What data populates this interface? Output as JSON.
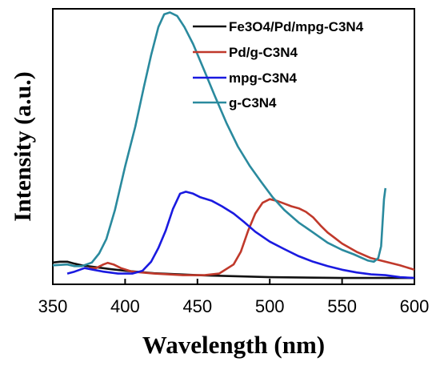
{
  "chart_data": {
    "type": "line",
    "title": "",
    "xlabel": "Wavelength (nm)",
    "ylabel": "Intensity (a.u.)",
    "xlim": [
      350,
      600
    ],
    "ylim": [
      0,
      100
    ],
    "x_ticks": [
      "350",
      "400",
      "450",
      "500",
      "550",
      "600"
    ],
    "y_ticks_shown": false,
    "grid": false,
    "legend_position": "top-right",
    "series": [
      {
        "name": "Fe3O4/Pd/mpg-C3N4",
        "color": "#111111",
        "points": [
          [
            350,
            7.9
          ],
          [
            355,
            8.2
          ],
          [
            360,
            8.2
          ],
          [
            365,
            7.5
          ],
          [
            370,
            6.9
          ],
          [
            380,
            6.2
          ],
          [
            390,
            5.5
          ],
          [
            400,
            4.9
          ],
          [
            420,
            4.0
          ],
          [
            450,
            3.3
          ],
          [
            500,
            2.6
          ],
          [
            550,
            2.3
          ],
          [
            600,
            2.3
          ]
        ]
      },
      {
        "name": "Pd/g-C3N4",
        "color": "#c0392b",
        "points": [
          [
            375,
            5.9
          ],
          [
            380,
            5.9
          ],
          [
            385,
            7.2
          ],
          [
            388,
            7.8
          ],
          [
            392,
            7.2
          ],
          [
            397,
            5.9
          ],
          [
            405,
            4.6
          ],
          [
            420,
            3.9
          ],
          [
            440,
            3.3
          ],
          [
            455,
            3.3
          ],
          [
            465,
            3.9
          ],
          [
            475,
            7.2
          ],
          [
            480,
            11.8
          ],
          [
            485,
            19.4
          ],
          [
            490,
            25.7
          ],
          [
            495,
            29.6
          ],
          [
            500,
            30.9
          ],
          [
            505,
            30.3
          ],
          [
            510,
            29.3
          ],
          [
            515,
            28.3
          ],
          [
            520,
            27.6
          ],
          [
            525,
            26.3
          ],
          [
            530,
            24.3
          ],
          [
            535,
            21.4
          ],
          [
            540,
            18.8
          ],
          [
            545,
            16.8
          ],
          [
            550,
            14.8
          ],
          [
            560,
            11.8
          ],
          [
            570,
            9.5
          ],
          [
            580,
            8.2
          ],
          [
            590,
            6.9
          ],
          [
            600,
            5.3
          ]
        ]
      },
      {
        "name": "mpg-C3N4",
        "color": "#1a1ae0",
        "points": [
          [
            360,
            3.9
          ],
          [
            365,
            4.6
          ],
          [
            372,
            5.9
          ],
          [
            378,
            5.3
          ],
          [
            385,
            4.6
          ],
          [
            395,
            3.9
          ],
          [
            405,
            3.9
          ],
          [
            412,
            4.9
          ],
          [
            418,
            8.2
          ],
          [
            423,
            13.2
          ],
          [
            428,
            19.4
          ],
          [
            433,
            27.3
          ],
          [
            438,
            32.9
          ],
          [
            442,
            33.6
          ],
          [
            447,
            32.9
          ],
          [
            452,
            31.6
          ],
          [
            460,
            30.3
          ],
          [
            467,
            28.3
          ],
          [
            475,
            25.7
          ],
          [
            482,
            22.7
          ],
          [
            490,
            19.1
          ],
          [
            500,
            15.5
          ],
          [
            510,
            12.8
          ],
          [
            520,
            10.2
          ],
          [
            530,
            8.2
          ],
          [
            540,
            6.6
          ],
          [
            550,
            5.3
          ],
          [
            560,
            4.3
          ],
          [
            570,
            3.6
          ],
          [
            580,
            3.3
          ],
          [
            590,
            2.6
          ],
          [
            600,
            2.3
          ]
        ]
      },
      {
        "name": "g-C3N4",
        "color": "#2a8a9e",
        "points": [
          [
            350,
            6.9
          ],
          [
            360,
            7.2
          ],
          [
            365,
            6.6
          ],
          [
            370,
            6.6
          ],
          [
            377,
            7.9
          ],
          [
            382,
            11.2
          ],
          [
            387,
            16.4
          ],
          [
            393,
            27.0
          ],
          [
            400,
            42.8
          ],
          [
            407,
            57.2
          ],
          [
            413,
            71.7
          ],
          [
            418,
            83.2
          ],
          [
            423,
            93.4
          ],
          [
            427,
            98.0
          ],
          [
            431,
            98.7
          ],
          [
            436,
            97.4
          ],
          [
            441,
            93.4
          ],
          [
            447,
            87.2
          ],
          [
            455,
            77.3
          ],
          [
            462,
            68.4
          ],
          [
            470,
            58.6
          ],
          [
            478,
            50.0
          ],
          [
            486,
            43.1
          ],
          [
            494,
            37.2
          ],
          [
            502,
            31.6
          ],
          [
            510,
            27.0
          ],
          [
            520,
            22.4
          ],
          [
            530,
            18.8
          ],
          [
            540,
            15.1
          ],
          [
            550,
            12.5
          ],
          [
            558,
            10.9
          ],
          [
            564,
            9.5
          ],
          [
            568,
            8.6
          ],
          [
            572,
            8.2
          ],
          [
            575,
            9.5
          ],
          [
            577,
            13.8
          ],
          [
            578,
            22.4
          ],
          [
            579,
            30.9
          ],
          [
            580,
            34.9
          ]
        ]
      }
    ]
  },
  "legend": [
    {
      "label": "Fe3O4/Pd/mpg-C3N4",
      "color": "#111111"
    },
    {
      "label": "Pd/g-C3N4",
      "color": "#c0392b"
    },
    {
      "label": "mpg-C3N4",
      "color": "#1a1ae0"
    },
    {
      "label": "g-C3N4",
      "color": "#2a8a9e"
    }
  ]
}
